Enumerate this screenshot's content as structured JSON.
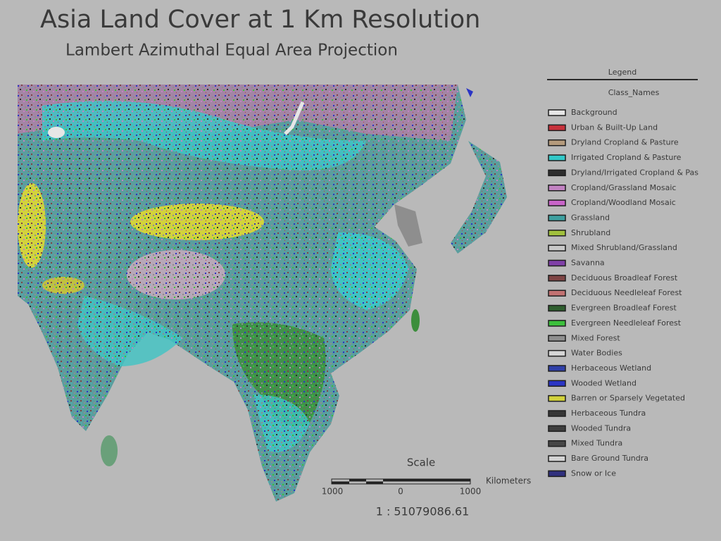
{
  "title": "Asia Land Cover at 1 Km Resolution",
  "subtitle": "Lambert Azimuthal Equal Area Projection",
  "legend": {
    "title": "Legend",
    "field": "Class_Names",
    "items": [
      {
        "name": "Background",
        "color": "#e6e6e6"
      },
      {
        "name": "Urban & Built-Up Land",
        "color": "#c8323c"
      },
      {
        "name": "Dryland Cropland & Pasture",
        "color": "#b49a7c"
      },
      {
        "name": "Irrigated Cropland & Pasture",
        "color": "#32c8c8"
      },
      {
        "name": "Dryland/Irrigated Cropland & Pas",
        "color": "#2e2e2e"
      },
      {
        "name": "Cropland/Grassland Mosaic",
        "color": "#c282c2"
      },
      {
        "name": "Cropland/Woodland Mosaic",
        "color": "#c864c8"
      },
      {
        "name": "Grassland",
        "color": "#3ea0a0"
      },
      {
        "name": "Shrubland",
        "color": "#a0c03c"
      },
      {
        "name": "Mixed Shrubland/Grassland",
        "color": "#c8c8c8"
      },
      {
        "name": "Savanna",
        "color": "#8040a8"
      },
      {
        "name": "Deciduous Broadleaf Forest",
        "color": "#7e4444"
      },
      {
        "name": "Deciduous Needleleaf Forest",
        "color": "#c27272"
      },
      {
        "name": "Evergreen Broadleaf Forest",
        "color": "#2e5e2e"
      },
      {
        "name": "Evergreen Needleleaf Forest",
        "color": "#3cc03c"
      },
      {
        "name": "Mixed Forest",
        "color": "#8e8e8e"
      },
      {
        "name": "Water Bodies",
        "color": "#d6d6d6"
      },
      {
        "name": "Herbaceous Wetland",
        "color": "#3040a8"
      },
      {
        "name": "Wooded Wetland",
        "color": "#2a34c4"
      },
      {
        "name": "Barren or Sparsely Vegetated",
        "color": "#d2d23c"
      },
      {
        "name": "Herbaceous Tundra",
        "color": "#363636"
      },
      {
        "name": "Wooded Tundra",
        "color": "#3e3e3e"
      },
      {
        "name": "Mixed Tundra",
        "color": "#464646"
      },
      {
        "name": "Bare Ground Tundra",
        "color": "#d4d4d4"
      },
      {
        "name": "Snow or Ice",
        "color": "#30307e"
      }
    ]
  },
  "scale": {
    "title": "Scale",
    "ticks": [
      1000,
      0,
      1000
    ],
    "unit": "Kilometers",
    "ratio": "1 : 51079086.61"
  }
}
